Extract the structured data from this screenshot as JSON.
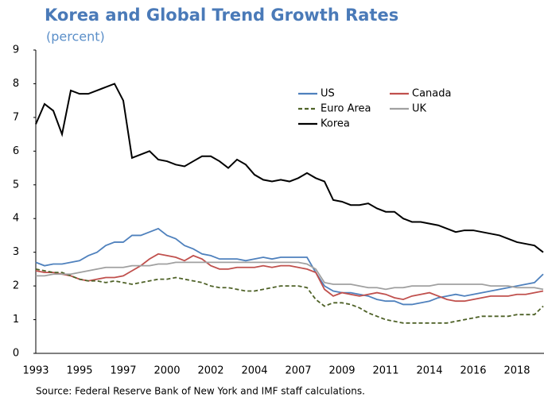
{
  "chart_data": {
    "type": "line",
    "title": "Korea and Global Trend Growth Rates",
    "subtitle": "(percent)",
    "source": "Source: Federal Reserve Bank of New York and IMF staff calculations.",
    "categories": [
      "1993",
      null,
      null,
      null,
      null,
      "1995",
      null,
      null,
      null,
      null,
      "1997",
      null,
      null,
      null,
      null,
      "2000",
      null,
      null,
      null,
      null,
      "2002",
      null,
      null,
      null,
      null,
      "2004",
      null,
      null,
      null,
      null,
      "2007",
      null,
      null,
      null,
      null,
      "2009",
      null,
      null,
      null,
      null,
      "2011",
      null,
      null,
      null,
      null,
      "2014",
      null,
      null,
      null,
      null,
      "2016",
      null,
      null,
      null,
      null,
      "2018",
      null,
      null,
      null
    ],
    "ylim": [
      0,
      9
    ],
    "yticks": [
      0,
      1,
      2,
      3,
      4,
      5,
      6,
      7,
      8,
      9
    ],
    "grid": false,
    "legend": "upper center",
    "series": [
      {
        "name": "US",
        "color": "#4f81bd",
        "linestyle": "solid",
        "values": [
          2.7,
          2.6,
          2.65,
          2.65,
          2.7,
          2.75,
          2.9,
          3.0,
          3.2,
          3.3,
          3.3,
          3.5,
          3.5,
          3.6,
          3.7,
          3.5,
          3.4,
          3.2,
          3.1,
          2.95,
          2.9,
          2.8,
          2.8,
          2.8,
          2.75,
          2.8,
          2.85,
          2.8,
          2.85,
          2.85,
          2.85,
          2.85,
          2.4,
          2.0,
          1.85,
          1.8,
          1.8,
          1.75,
          1.7,
          1.6,
          1.55,
          1.55,
          1.45,
          1.45,
          1.5,
          1.55,
          1.65,
          1.7,
          1.75,
          1.7,
          1.75,
          1.8,
          1.85,
          1.9,
          1.95,
          2.0,
          2.05,
          2.1,
          2.35
        ]
      },
      {
        "name": "Canada",
        "color": "#c0504d",
        "linestyle": "solid",
        "values": [
          2.45,
          2.4,
          2.4,
          2.35,
          2.3,
          2.2,
          2.15,
          2.2,
          2.25,
          2.25,
          2.3,
          2.45,
          2.6,
          2.8,
          2.95,
          2.9,
          2.85,
          2.75,
          2.9,
          2.8,
          2.6,
          2.5,
          2.5,
          2.55,
          2.55,
          2.55,
          2.6,
          2.55,
          2.6,
          2.6,
          2.55,
          2.5,
          2.4,
          1.9,
          1.7,
          1.8,
          1.75,
          1.7,
          1.75,
          1.8,
          1.75,
          1.65,
          1.6,
          1.7,
          1.75,
          1.8,
          1.7,
          1.6,
          1.55,
          1.55,
          1.6,
          1.65,
          1.7,
          1.7,
          1.7,
          1.75,
          1.75,
          1.8,
          1.85
        ]
      },
      {
        "name": "Euro Area",
        "color": "#4f6228",
        "linestyle": "dashed",
        "values": [
          2.5,
          2.45,
          2.4,
          2.4,
          2.3,
          2.2,
          2.15,
          2.15,
          2.1,
          2.15,
          2.1,
          2.05,
          2.1,
          2.15,
          2.2,
          2.2,
          2.25,
          2.2,
          2.15,
          2.1,
          2.0,
          1.95,
          1.95,
          1.9,
          1.85,
          1.85,
          1.9,
          1.95,
          2.0,
          2.0,
          2.0,
          1.95,
          1.6,
          1.4,
          1.5,
          1.5,
          1.45,
          1.35,
          1.2,
          1.1,
          1.0,
          0.95,
          0.9,
          0.9,
          0.9,
          0.9,
          0.9,
          0.9,
          0.95,
          1.0,
          1.05,
          1.1,
          1.1,
          1.1,
          1.1,
          1.15,
          1.15,
          1.15,
          1.4
        ]
      },
      {
        "name": "UK",
        "color": "#a0a0a0",
        "linestyle": "solid",
        "values": [
          2.3,
          2.3,
          2.35,
          2.35,
          2.35,
          2.4,
          2.45,
          2.5,
          2.55,
          2.55,
          2.55,
          2.6,
          2.6,
          2.6,
          2.65,
          2.65,
          2.7,
          2.7,
          2.7,
          2.7,
          2.7,
          2.7,
          2.7,
          2.7,
          2.7,
          2.7,
          2.7,
          2.7,
          2.7,
          2.7,
          2.7,
          2.65,
          2.5,
          2.1,
          2.05,
          2.05,
          2.05,
          2.0,
          1.95,
          1.95,
          1.9,
          1.95,
          1.95,
          2.0,
          2.0,
          2.0,
          2.05,
          2.05,
          2.05,
          2.05,
          2.05,
          2.05,
          2.0,
          2.0,
          2.0,
          1.95,
          1.95,
          1.95,
          1.9
        ]
      },
      {
        "name": "Korea",
        "color": "#000000",
        "linestyle": "solid",
        "values": [
          6.8,
          7.4,
          7.2,
          6.5,
          7.8,
          7.7,
          7.7,
          7.8,
          7.9,
          8.0,
          7.5,
          5.8,
          5.9,
          6.0,
          5.75,
          5.7,
          5.6,
          5.55,
          5.7,
          5.85,
          5.85,
          5.7,
          5.5,
          5.75,
          5.6,
          5.3,
          5.15,
          5.1,
          5.15,
          5.1,
          5.2,
          5.35,
          5.2,
          5.1,
          4.55,
          4.5,
          4.4,
          4.4,
          4.45,
          4.3,
          4.2,
          4.2,
          4.0,
          3.9,
          3.9,
          3.85,
          3.8,
          3.7,
          3.6,
          3.65,
          3.65,
          3.6,
          3.55,
          3.5,
          3.4,
          3.3,
          3.25,
          3.2,
          3.0
        ]
      }
    ]
  }
}
